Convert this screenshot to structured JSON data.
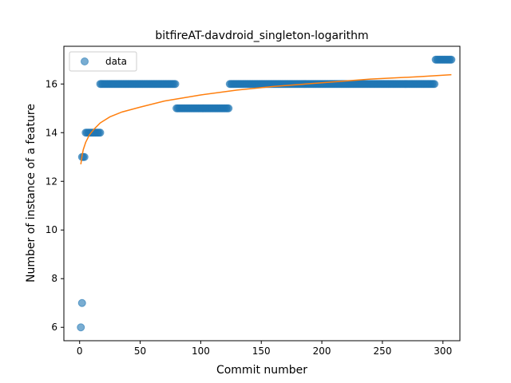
{
  "chart_data": {
    "type": "scatter",
    "title": "bitfireAT-davdroid_singleton-logarithm",
    "xlabel": "Commit number",
    "ylabel": "Number of instance of a feature",
    "xlim": [
      -13,
      314
    ],
    "ylim": [
      5.45,
      17.55
    ],
    "xticks": [
      0,
      50,
      100,
      150,
      200,
      250,
      300
    ],
    "yticks": [
      6,
      8,
      10,
      12,
      14,
      16
    ],
    "grid": false,
    "legend": {
      "position": "top-left",
      "entries": [
        "data"
      ]
    },
    "colors": {
      "data": "#1f77b4",
      "fit": "#ff7f0e"
    },
    "series": [
      {
        "name": "data",
        "style": "points",
        "segments": [
          {
            "x_start": 1,
            "x_end": 1,
            "y": 6
          },
          {
            "x_start": 2,
            "x_end": 2,
            "y": 7
          },
          {
            "x_start": 2,
            "x_end": 4,
            "y": 13
          },
          {
            "x_start": 5,
            "x_end": 17,
            "y": 14
          },
          {
            "x_start": 17,
            "x_end": 79,
            "y": 16
          },
          {
            "x_start": 80,
            "x_end": 123,
            "y": 15
          },
          {
            "x_start": 124,
            "x_end": 293,
            "y": 16
          },
          {
            "x_start": 294,
            "x_end": 307,
            "y": 17
          }
        ]
      },
      {
        "style": "line",
        "x": [
          1,
          2,
          3,
          5,
          8,
          12,
          17,
          25,
          35,
          50,
          70,
          100,
          130,
          160,
          200,
          240,
          280,
          307
        ],
        "y": [
          12.7,
          13.05,
          13.3,
          13.6,
          13.9,
          14.15,
          14.4,
          14.65,
          14.85,
          15.05,
          15.3,
          15.55,
          15.75,
          15.9,
          16.05,
          16.2,
          16.3,
          16.38
        ]
      }
    ]
  }
}
